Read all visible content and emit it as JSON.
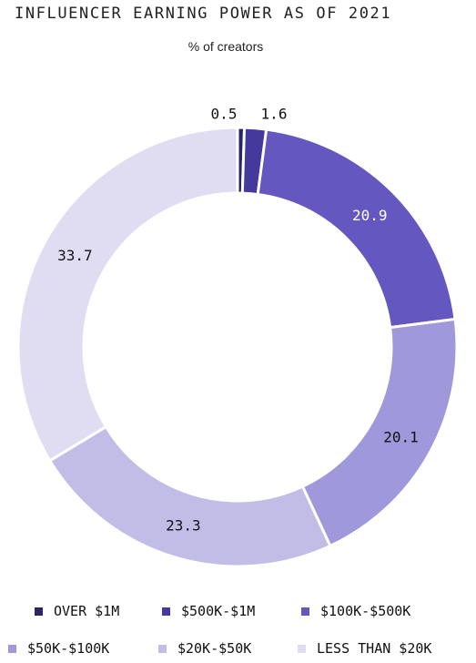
{
  "title": "INFLUENCER EARNING POWER AS OF 2021",
  "subtitle": "% of creators",
  "chart_data": {
    "type": "pie",
    "donut": true,
    "title": "INFLUENCER EARNING POWER AS OF 2021",
    "subtitle": "% of creators",
    "categories": [
      "OVER $1M",
      "$500K-$1M",
      "$100K-$500K",
      "$50K-$100K",
      "$20K-$50K",
      "LESS THAN $20K"
    ],
    "values": [
      0.5,
      1.6,
      20.9,
      20.1,
      23.3,
      33.7
    ],
    "labels": [
      "0.5",
      "1.6",
      "20.9",
      "20.1",
      "23.3",
      "33.7"
    ],
    "colors": [
      "#2b2466",
      "#443a9e",
      "#6457c0",
      "#9f98da",
      "#c2bde6",
      "#e0ddf3"
    ],
    "label_colors": [
      "#111111",
      "#111111",
      "#ffffff",
      "#111111",
      "#111111",
      "#111111"
    ],
    "legend_position": "bottom",
    "grid": false
  }
}
